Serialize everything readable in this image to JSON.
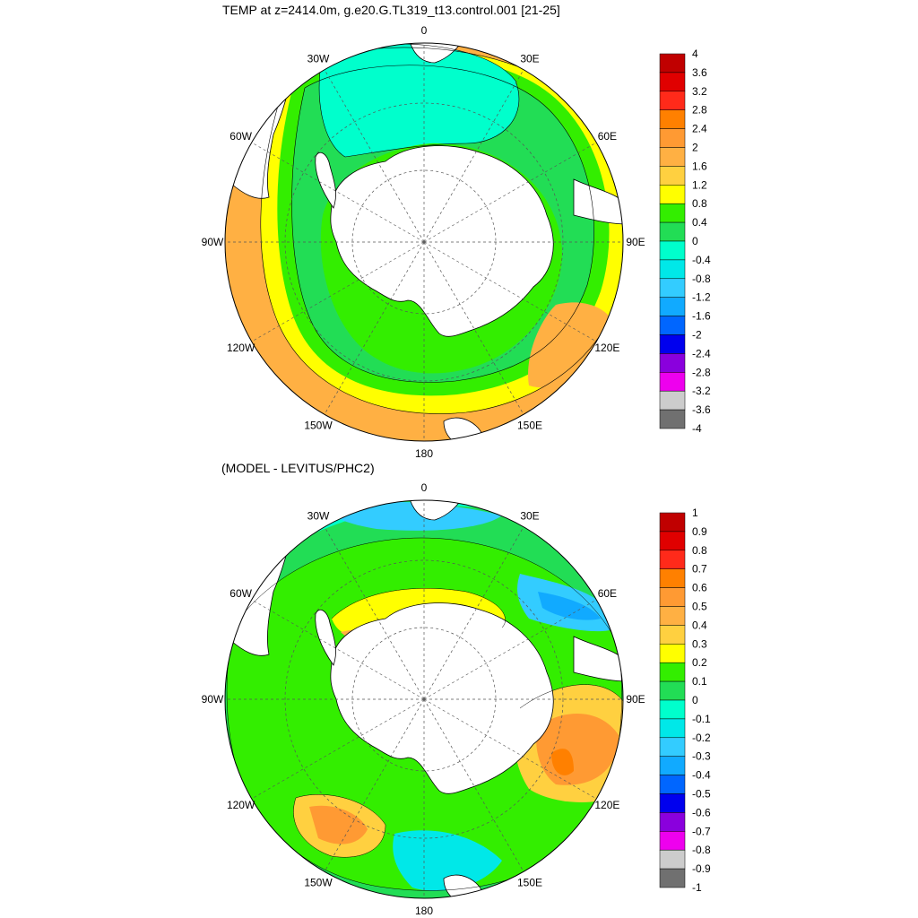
{
  "panel_top": {
    "title": "TEMP at z=2414.0m, g.e20.G.TL319_t13.control.001 [21-25]",
    "colorbar_labels": [
      "4",
      "3.6",
      "3.2",
      "2.8",
      "2.4",
      "2",
      "1.6",
      "1.2",
      "0.8",
      "0.4",
      "0",
      "-0.4",
      "-0.8",
      "-1.2",
      "-1.6",
      "-2",
      "-2.4",
      "-2.8",
      "-3.2",
      "-3.6",
      "-4"
    ],
    "colorbar_colors": [
      "#c00000",
      "#e00000",
      "#ff2a1a",
      "#ff8000",
      "#ff9a33",
      "#ffb043",
      "#ffd040",
      "#ffff00",
      "#33ee00",
      "#22dd55",
      "#00ffcc",
      "#00e8e8",
      "#33ccff",
      "#11aaff",
      "#0066ff",
      "#0000ee",
      "#8a00dd",
      "#ee00ee",
      "#cccccc",
      "#707070"
    ]
  },
  "panel_bottom": {
    "title": "(MODEL - LEVITUS/PHC2)",
    "colorbar_labels": [
      "1",
      "0.9",
      "0.8",
      "0.7",
      "0.6",
      "0.5",
      "0.4",
      "0.3",
      "0.2",
      "0.1",
      "0",
      "-0.1",
      "-0.2",
      "-0.3",
      "-0.4",
      "-0.5",
      "-0.6",
      "-0.7",
      "-0.8",
      "-0.9",
      "-1"
    ],
    "colorbar_colors": [
      "#c00000",
      "#e00000",
      "#ff2a1a",
      "#ff8000",
      "#ff9a33",
      "#ffb043",
      "#ffd040",
      "#ffff00",
      "#33ee00",
      "#22dd55",
      "#00ffcc",
      "#00e8e8",
      "#33ccff",
      "#11aaff",
      "#0066ff",
      "#0000ee",
      "#8a00dd",
      "#ee00ee",
      "#cccccc",
      "#707070"
    ]
  },
  "longitude_labels": {
    "n0": "0",
    "n30e": "30E",
    "n60e": "60E",
    "n90e": "90E",
    "n120e": "120E",
    "n150e": "150E",
    "n180": "180",
    "n150w": "150W",
    "n120w": "120W",
    "n90w": "90W",
    "n60w": "60W",
    "n30w": "30W"
  },
  "colors": {
    "land": "#ffffff",
    "coast": "#000000",
    "grid": "#555555"
  }
}
